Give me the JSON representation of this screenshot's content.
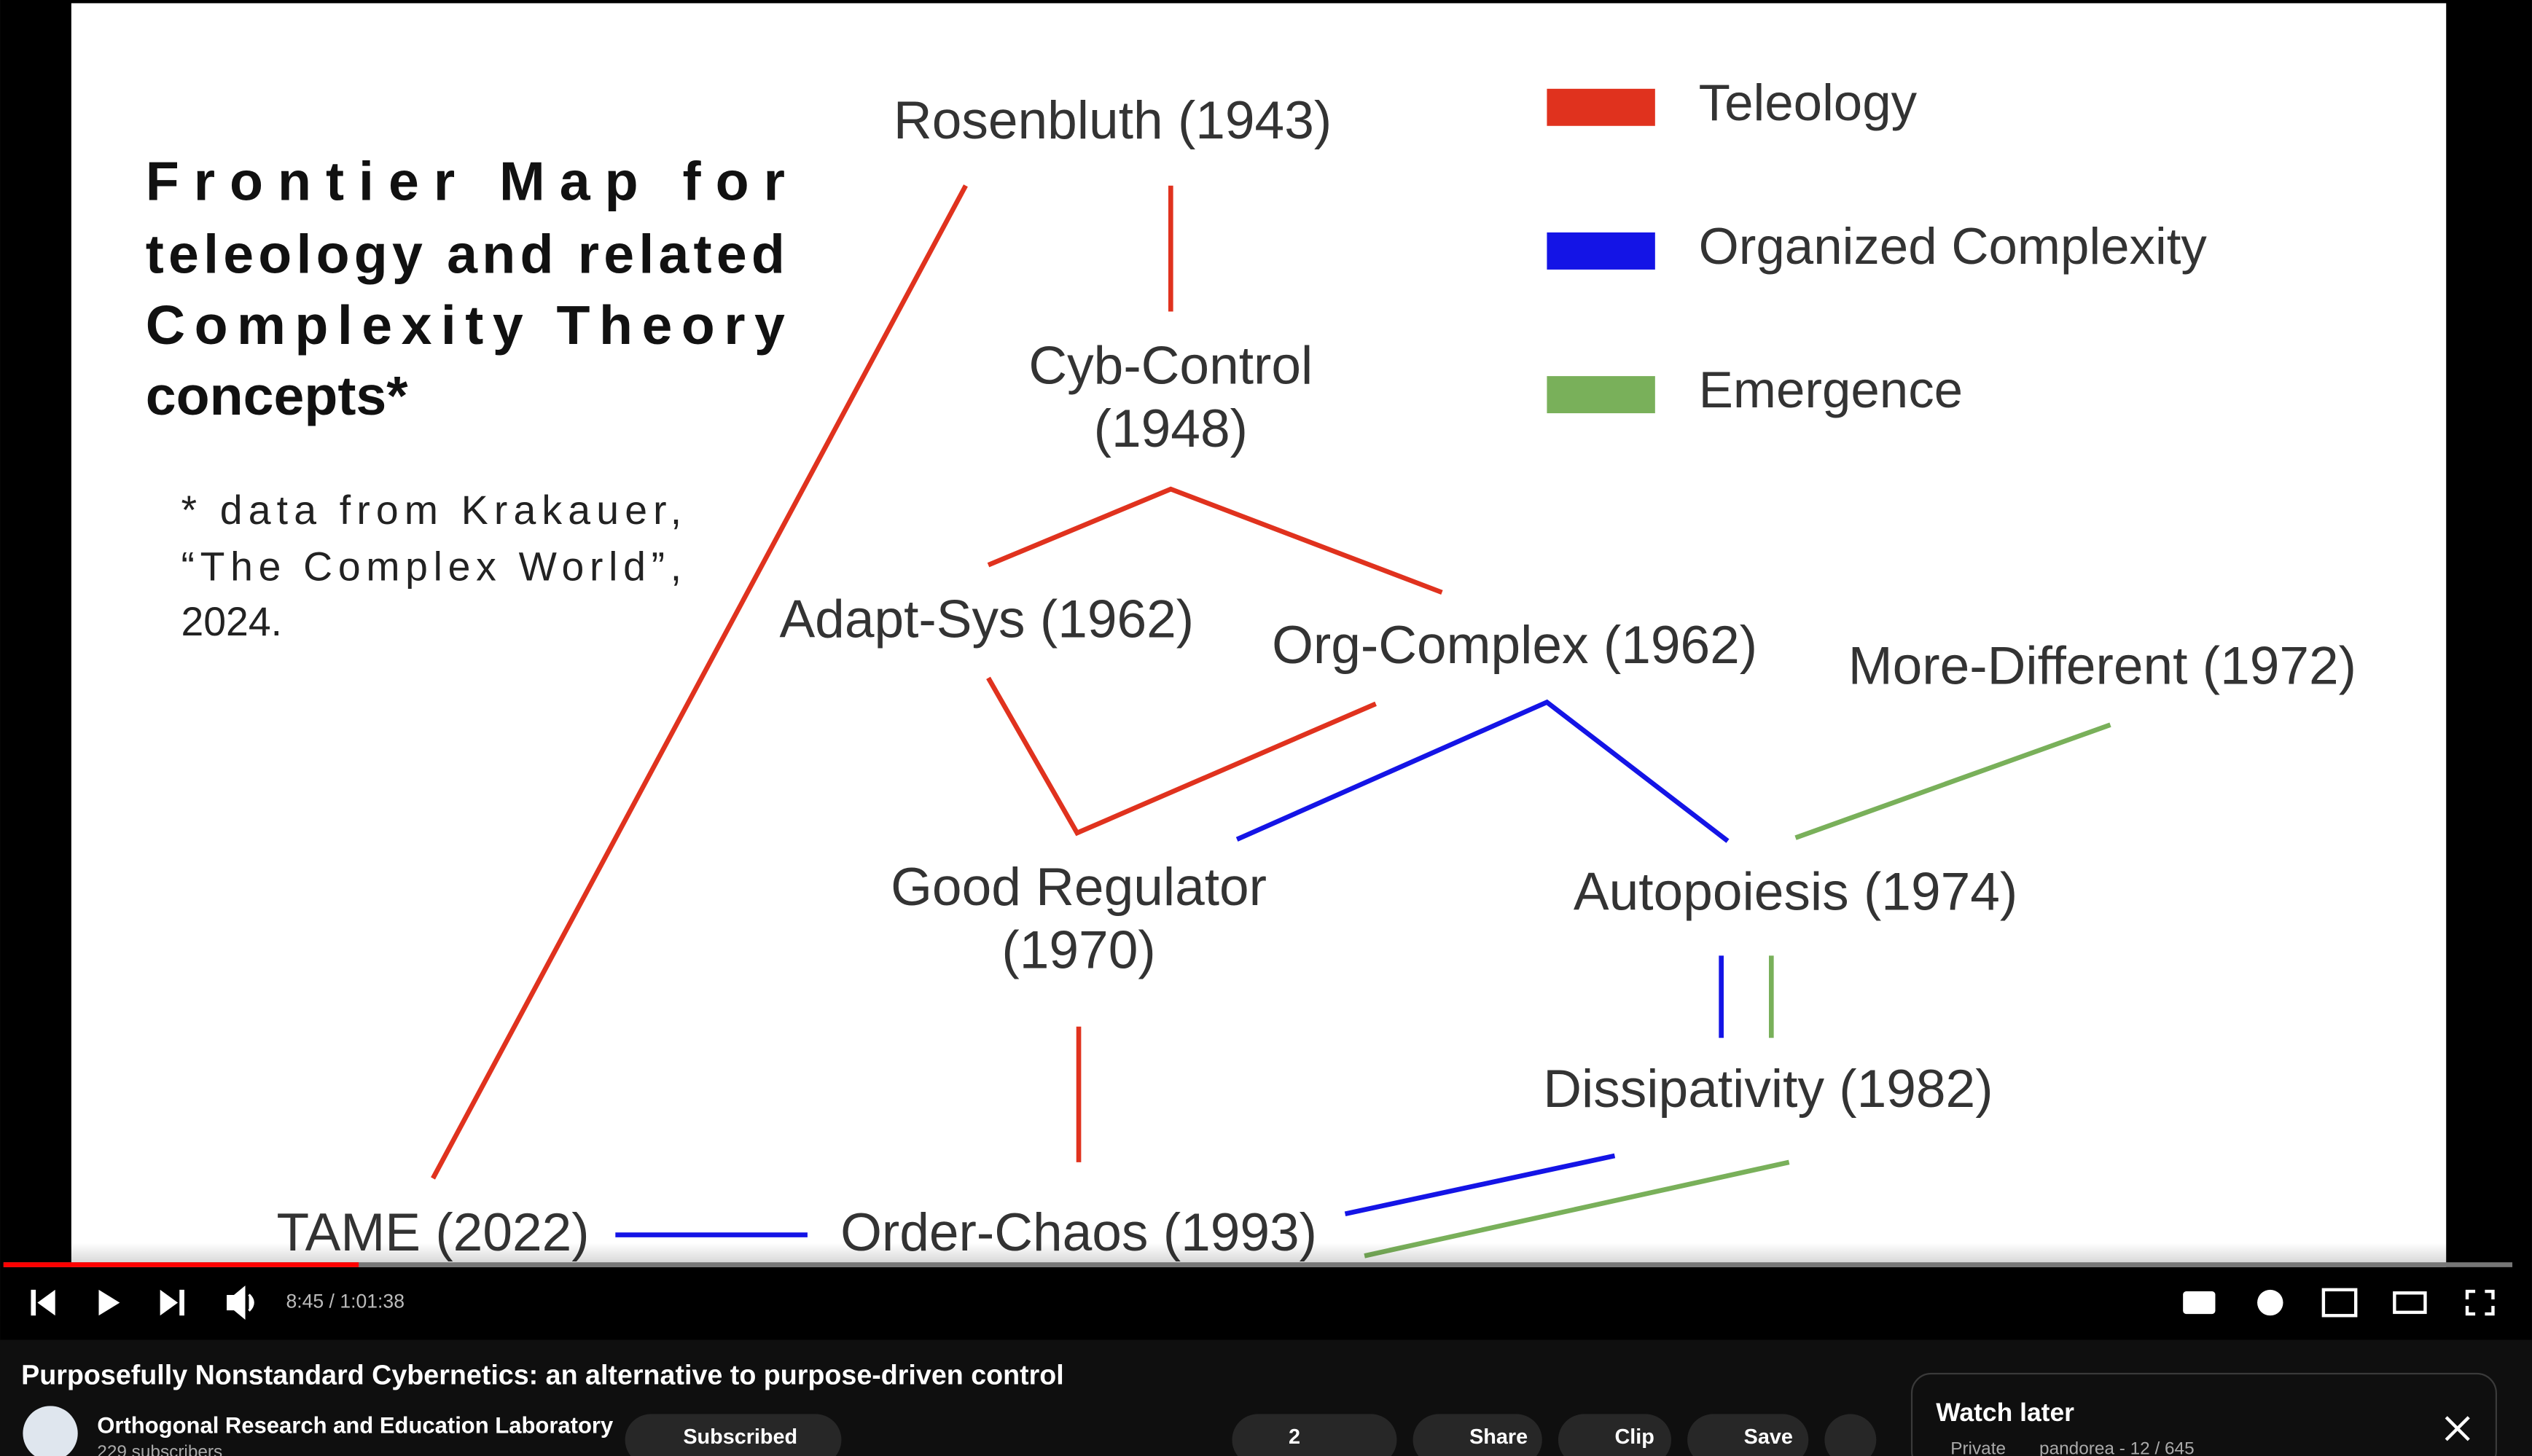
{
  "slide": {
    "title_lines": [
      "Frontier Map for",
      "teleology and related",
      "Complexity Theory",
      "concepts*"
    ],
    "note_lines": [
      "* data from Krakauer,",
      "“The Complex World”,",
      "2024."
    ],
    "legend": [
      {
        "label": "Teleology",
        "color": "#e0321e"
      },
      {
        "label": "Organized Complexity",
        "color": "#1414e6"
      },
      {
        "label": "Emergence",
        "color": "#79b05a"
      }
    ],
    "nodes": [
      {
        "lines": [
          "Rosenbluth (1943)"
        ]
      },
      {
        "lines": [
          "Cyb-Control",
          "(1948)"
        ]
      },
      {
        "lines": [
          "Adapt-Sys (1962)"
        ]
      },
      {
        "lines": [
          "Org-Complex (1962)"
        ]
      },
      {
        "lines": [
          "More-Different (1972)"
        ]
      },
      {
        "lines": [
          "Good Regulator",
          "(1970)"
        ]
      },
      {
        "lines": [
          "Autopoiesis (1974)"
        ]
      },
      {
        "lines": [
          "Dissipativity (1982)"
        ]
      },
      {
        "lines": [
          "TAME (2022)"
        ]
      },
      {
        "lines": [
          "Order-Chaos (1993)"
        ]
      }
    ]
  },
  "player": {
    "time": "8:45 / 1:01:38"
  },
  "video": {
    "title": "Purposefully Nonstandard Cybernetics: an alternative to purpose-driven control",
    "channel": "Orthogonal Research and Education Laboratory",
    "subscribers": "229 subscribers",
    "subscribe_button": "Subscribed",
    "likes": 2,
    "actions": [
      "Share",
      "Clip",
      "Save"
    ]
  },
  "watch_later": {
    "title": "Watch later",
    "privacy": "Private",
    "meta": "pandorea - 12 / 645"
  }
}
